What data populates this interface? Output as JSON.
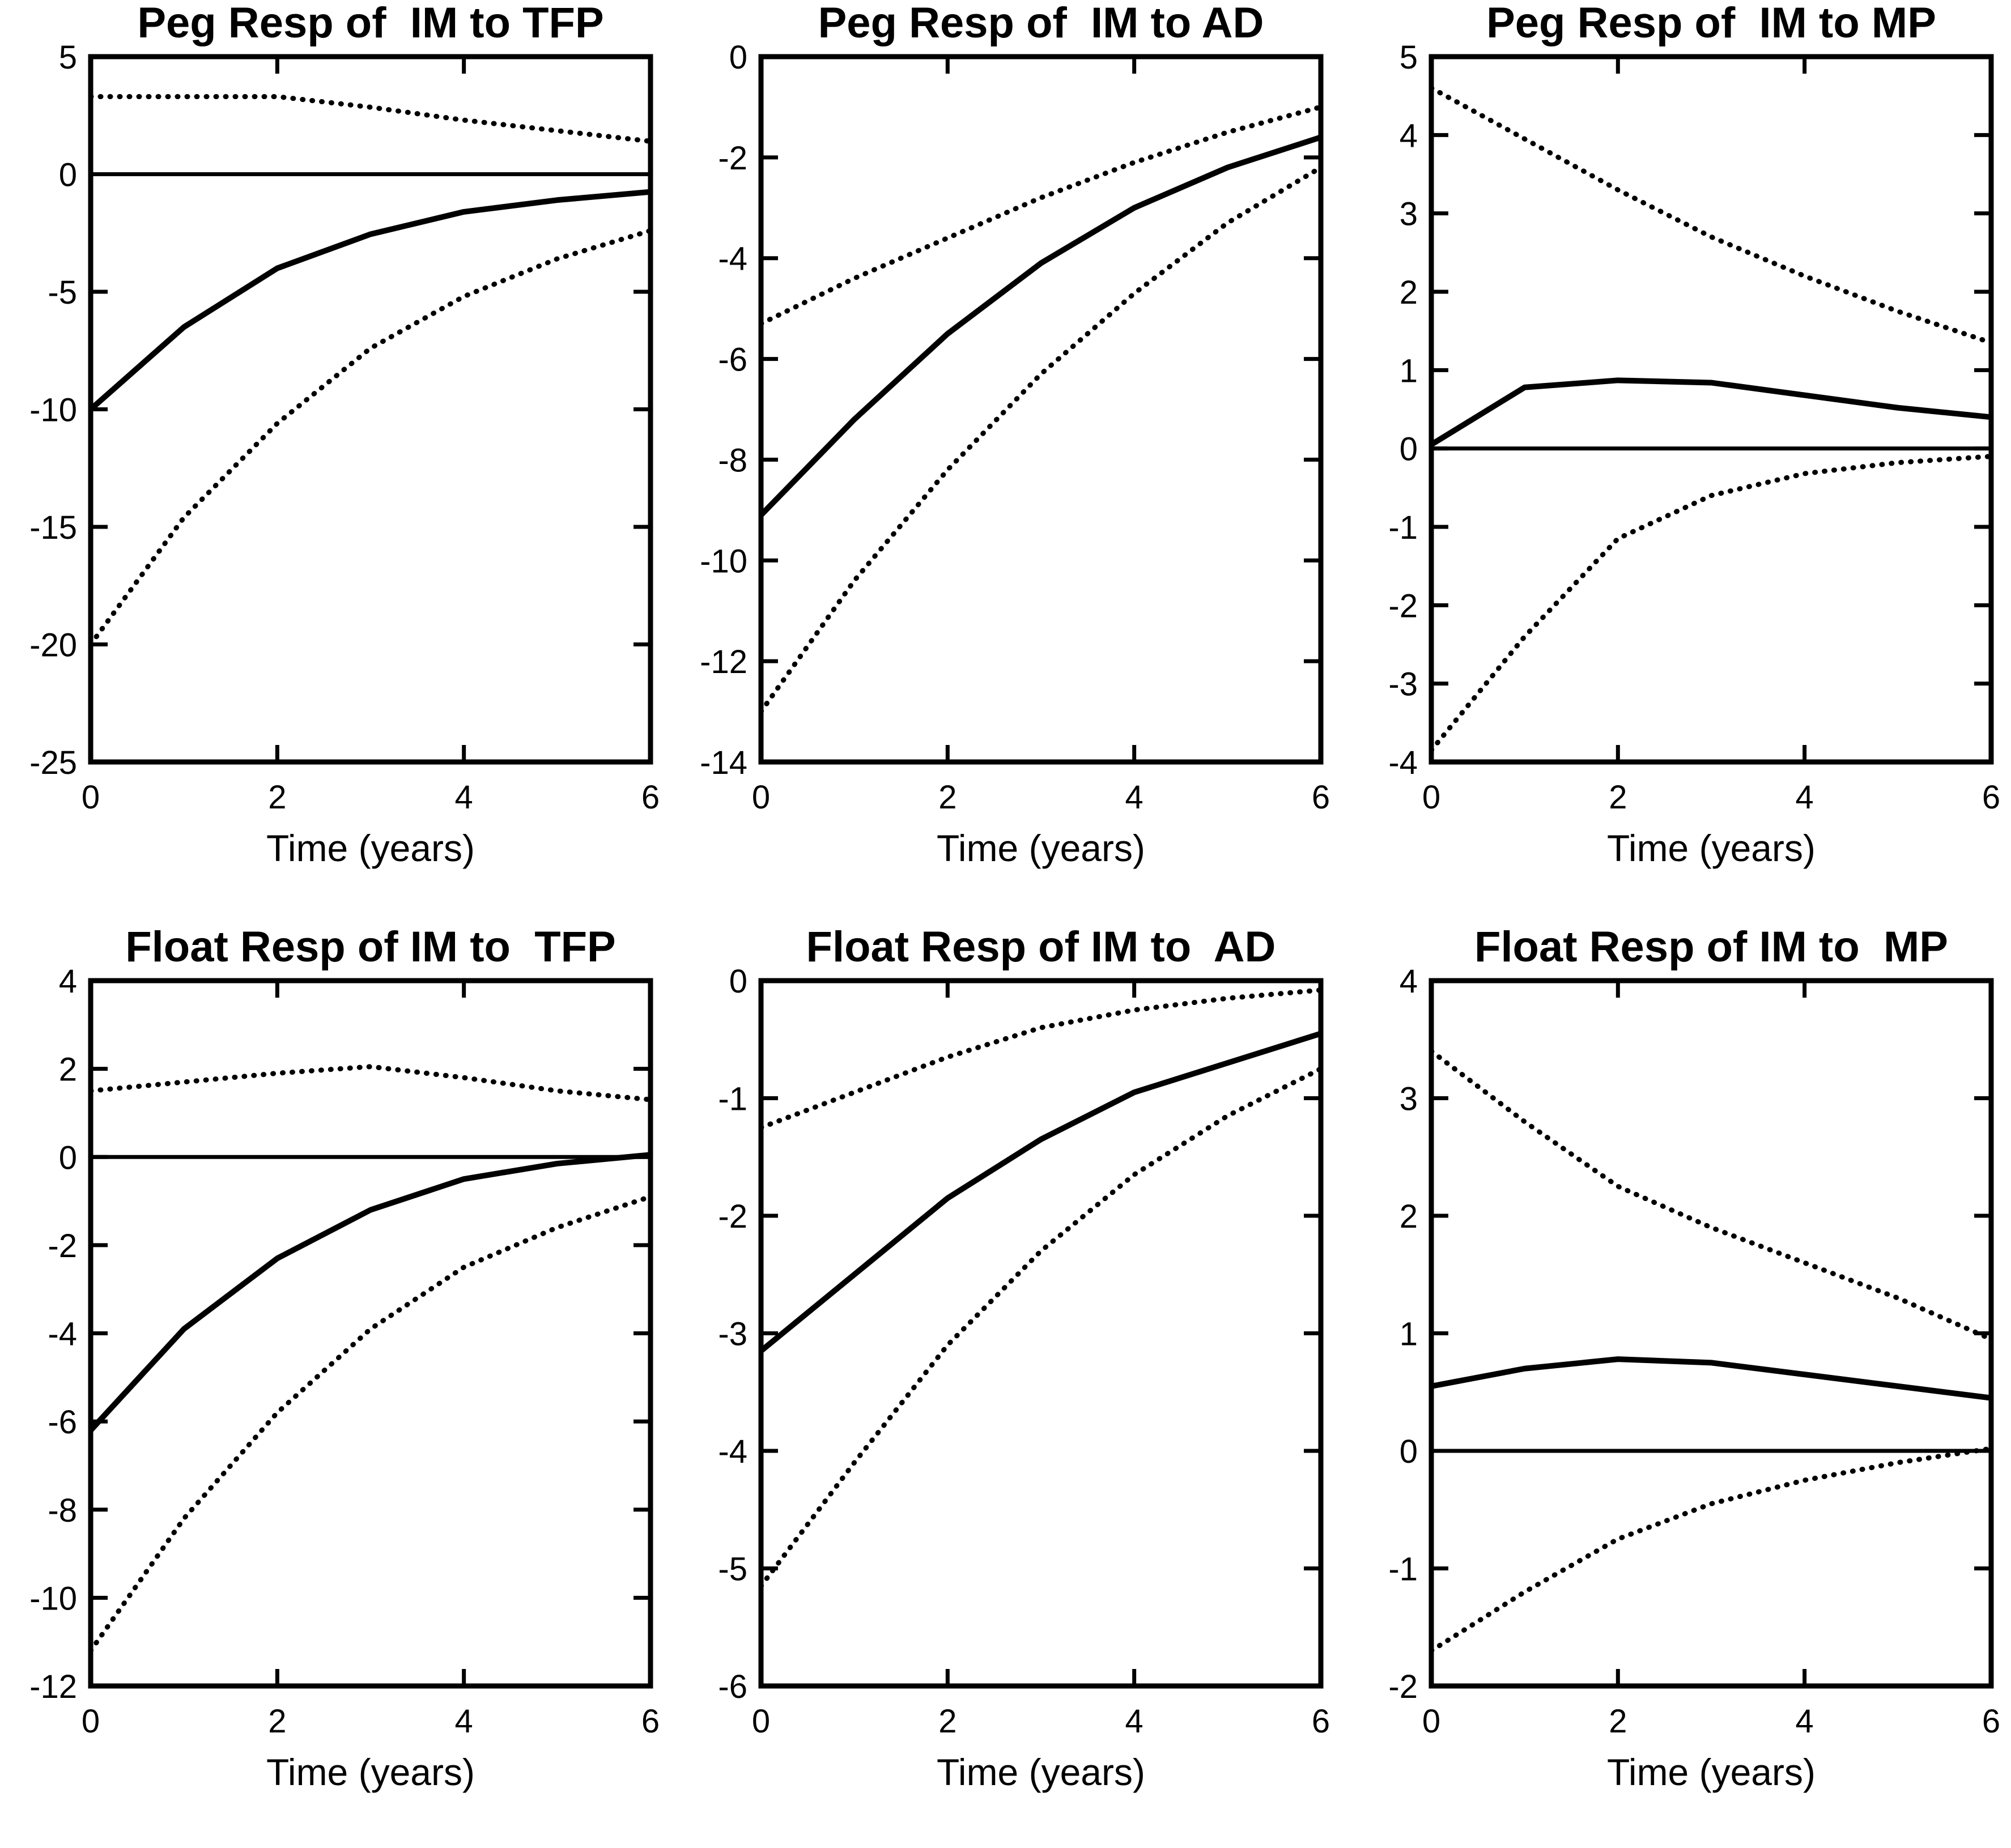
{
  "colors": {
    "ink": "#000000",
    "background": "#ffffff"
  },
  "chart_data": [
    {
      "type": "line",
      "title": "Peg Resp of  IM to TFP",
      "xlabel": "Time (years)",
      "x": [
        0,
        1,
        2,
        3,
        4,
        5,
        6
      ],
      "xlim": [
        0,
        6
      ],
      "ylim": [
        -25,
        5
      ],
      "xticks": [
        0,
        2,
        4,
        6
      ],
      "yticks": [
        5,
        0,
        -5,
        -10,
        -15,
        -20,
        -25
      ],
      "zero_line": true,
      "grid": false,
      "legend": "none",
      "series": [
        {
          "name": "lower-band",
          "style": "dotted",
          "values": [
            -20.0,
            -14.6,
            -10.6,
            -7.4,
            -5.2,
            -3.6,
            -2.4
          ]
        },
        {
          "name": "upper-band",
          "style": "dotted",
          "values": [
            3.3,
            3.3,
            3.3,
            2.85,
            2.3,
            1.85,
            1.4
          ]
        },
        {
          "name": "point-estimate",
          "style": "solid",
          "values": [
            -10.0,
            -6.5,
            -4.0,
            -2.55,
            -1.6,
            -1.1,
            -0.75
          ]
        }
      ]
    },
    {
      "type": "line",
      "title": "Peg Resp of  IM to AD",
      "xlabel": "Time (years)",
      "x": [
        0,
        1,
        2,
        3,
        4,
        5,
        6
      ],
      "xlim": [
        0,
        6
      ],
      "ylim": [
        -14,
        0
      ],
      "xticks": [
        0,
        2,
        4,
        6
      ],
      "yticks": [
        0,
        -2,
        -4,
        -6,
        -8,
        -10,
        -12,
        -14
      ],
      "zero_line": false,
      "grid": false,
      "legend": "none",
      "series": [
        {
          "name": "lower-band",
          "style": "dotted",
          "values": [
            -13.0,
            -10.4,
            -8.2,
            -6.3,
            -4.7,
            -3.3,
            -2.2
          ]
        },
        {
          "name": "upper-band",
          "style": "dotted",
          "values": [
            -5.3,
            -4.4,
            -3.6,
            -2.8,
            -2.1,
            -1.5,
            -1.0
          ]
        },
        {
          "name": "point-estimate",
          "style": "solid",
          "values": [
            -9.1,
            -7.2,
            -5.5,
            -4.1,
            -3.0,
            -2.2,
            -1.6
          ]
        }
      ]
    },
    {
      "type": "line",
      "title": "Peg Resp of  IM to MP",
      "xlabel": "Time (years)",
      "x": [
        0,
        1,
        2,
        3,
        4,
        5,
        6
      ],
      "xlim": [
        0,
        6
      ],
      "ylim": [
        -4,
        5
      ],
      "xticks": [
        0,
        2,
        4,
        6
      ],
      "yticks": [
        5,
        4,
        3,
        2,
        1,
        0,
        -1,
        -2,
        -3,
        -4
      ],
      "zero_line": true,
      "grid": false,
      "legend": "none",
      "series": [
        {
          "name": "lower-band",
          "style": "dotted",
          "values": [
            -3.85,
            -2.4,
            -1.15,
            -0.6,
            -0.32,
            -0.18,
            -0.1
          ]
        },
        {
          "name": "upper-band",
          "style": "dotted",
          "values": [
            4.6,
            3.95,
            3.3,
            2.7,
            2.2,
            1.75,
            1.35
          ]
        },
        {
          "name": "point-estimate",
          "style": "solid",
          "values": [
            0.05,
            0.78,
            0.87,
            0.84,
            0.68,
            0.52,
            0.4
          ]
        }
      ]
    },
    {
      "type": "line",
      "title": "Float Resp of IM to  TFP",
      "xlabel": "Time (years)",
      "x": [
        0,
        1,
        2,
        3,
        4,
        5,
        6
      ],
      "xlim": [
        0,
        6
      ],
      "ylim": [
        -12,
        4
      ],
      "xticks": [
        0,
        2,
        4,
        6
      ],
      "yticks": [
        4,
        2,
        0,
        -2,
        -4,
        -6,
        -8,
        -10,
        -12
      ],
      "zero_line": true,
      "grid": false,
      "legend": "none",
      "series": [
        {
          "name": "lower-band",
          "style": "dotted",
          "values": [
            -11.2,
            -8.2,
            -5.8,
            -3.9,
            -2.5,
            -1.6,
            -0.9
          ]
        },
        {
          "name": "upper-band",
          "style": "dotted",
          "values": [
            1.5,
            1.7,
            1.9,
            2.05,
            1.8,
            1.5,
            1.3
          ]
        },
        {
          "name": "point-estimate",
          "style": "solid",
          "values": [
            -6.2,
            -3.9,
            -2.3,
            -1.2,
            -0.5,
            -0.15,
            0.05
          ]
        }
      ]
    },
    {
      "type": "line",
      "title": "Float Resp of IM to  AD",
      "xlabel": "Time (years)",
      "x": [
        0,
        1,
        2,
        3,
        4,
        5,
        6
      ],
      "xlim": [
        0,
        6
      ],
      "ylim": [
        -6,
        0
      ],
      "xticks": [
        0,
        2,
        4,
        6
      ],
      "yticks": [
        0,
        -1,
        -2,
        -3,
        -4,
        -5,
        -6
      ],
      "zero_line": false,
      "grid": false,
      "legend": "none",
      "series": [
        {
          "name": "lower-band",
          "style": "dotted",
          "values": [
            -5.15,
            -4.1,
            -3.1,
            -2.3,
            -1.65,
            -1.15,
            -0.75
          ]
        },
        {
          "name": "upper-band",
          "style": "dotted",
          "values": [
            -1.25,
            -0.95,
            -0.65,
            -0.4,
            -0.25,
            -0.15,
            -0.08
          ]
        },
        {
          "name": "point-estimate",
          "style": "solid",
          "values": [
            -3.15,
            -2.5,
            -1.85,
            -1.35,
            -0.95,
            -0.7,
            -0.45
          ]
        }
      ]
    },
    {
      "type": "line",
      "title": "Float Resp of IM to  MP",
      "xlabel": "Time (years)",
      "x": [
        0,
        1,
        2,
        3,
        4,
        5,
        6
      ],
      "xlim": [
        0,
        6
      ],
      "ylim": [
        -2,
        4
      ],
      "xticks": [
        0,
        2,
        4,
        6
      ],
      "yticks": [
        4,
        3,
        2,
        1,
        0,
        -1,
        -2
      ],
      "zero_line": true,
      "grid": false,
      "legend": "none",
      "series": [
        {
          "name": "lower-band",
          "style": "dotted",
          "values": [
            -1.7,
            -1.2,
            -0.75,
            -0.45,
            -0.25,
            -0.1,
            0.02
          ]
        },
        {
          "name": "upper-band",
          "style": "dotted",
          "values": [
            3.4,
            2.8,
            2.25,
            1.9,
            1.6,
            1.3,
            0.95
          ]
        },
        {
          "name": "point-estimate",
          "style": "solid",
          "values": [
            0.55,
            0.7,
            0.78,
            0.75,
            0.65,
            0.55,
            0.45
          ]
        }
      ]
    }
  ]
}
